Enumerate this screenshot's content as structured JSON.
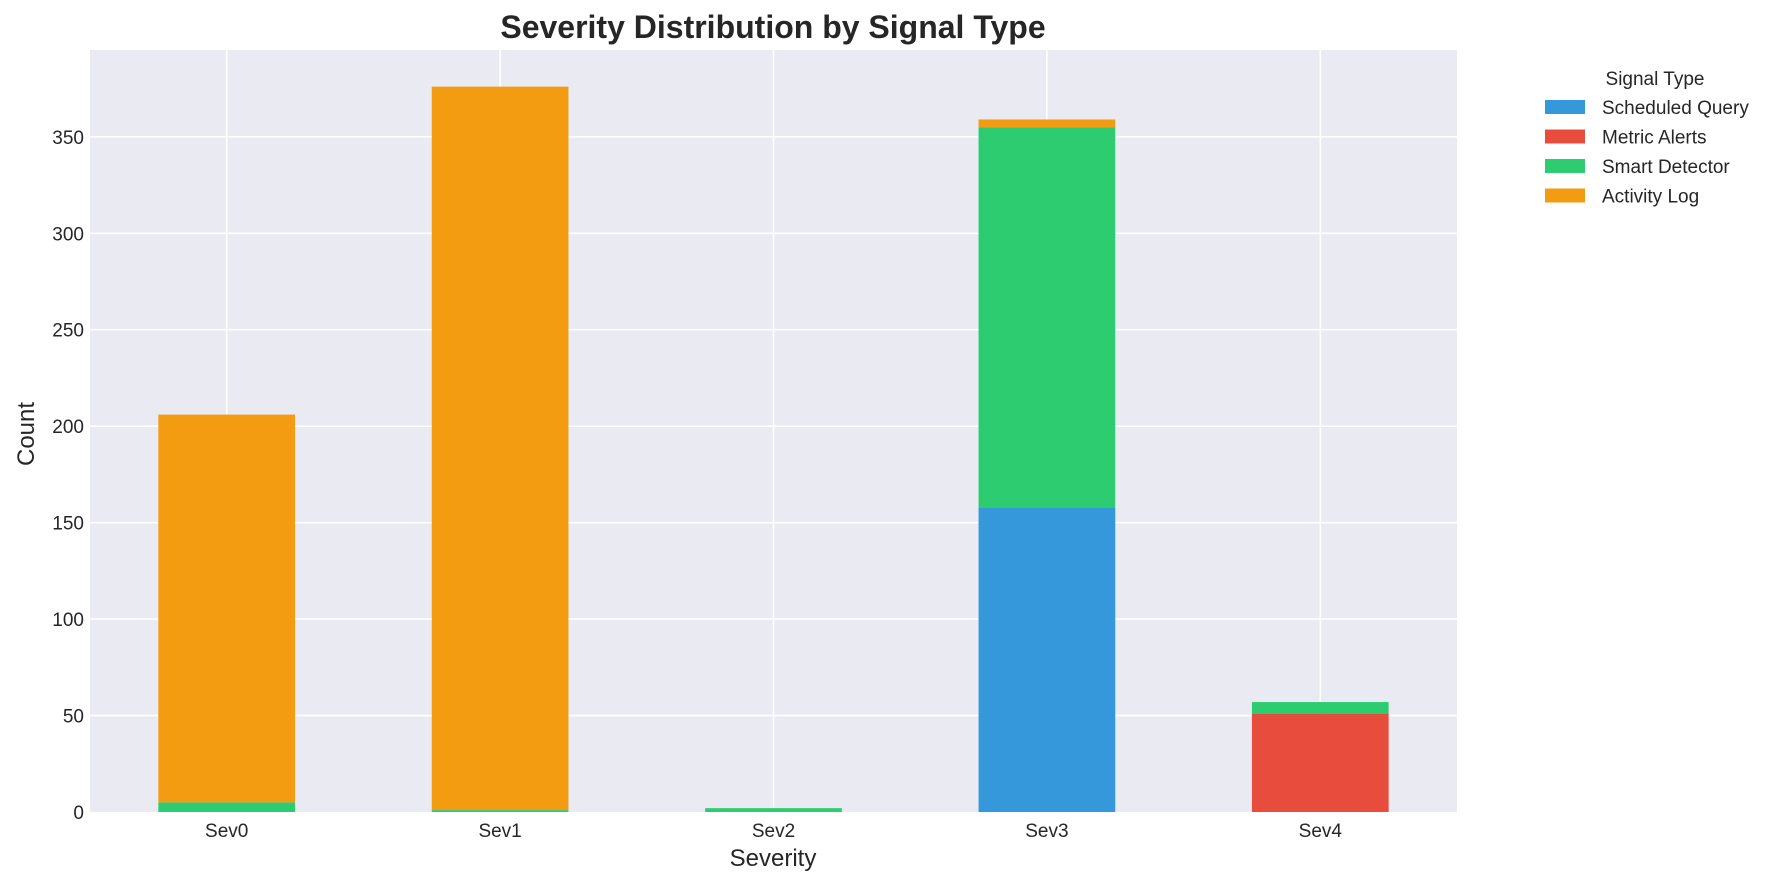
{
  "chart_data": {
    "type": "bar",
    "stacked": true,
    "title": "Severity Distribution by Signal Type",
    "xlabel": "Severity",
    "ylabel": "Count",
    "categories": [
      "Sev0",
      "Sev1",
      "Sev2",
      "Sev3",
      "Sev4"
    ],
    "ylim": [
      0,
      395
    ],
    "yticks": [
      0,
      50,
      100,
      150,
      200,
      250,
      300,
      350
    ],
    "grid": true,
    "legend": {
      "title": "Signal Type",
      "placement": "outside-top-right"
    },
    "series": [
      {
        "name": "Scheduled Query",
        "color": "#3498db",
        "values": [
          0,
          0,
          0,
          158,
          0
        ]
      },
      {
        "name": "Metric Alerts",
        "color": "#e74c3c",
        "values": [
          0,
          0,
          0,
          0,
          51
        ]
      },
      {
        "name": "Smart Detector",
        "color": "#2ecc71",
        "values": [
          5,
          1,
          2,
          197,
          6
        ]
      },
      {
        "name": "Activity Log",
        "color": "#f39c12",
        "values": [
          201,
          375,
          0,
          4,
          0
        ]
      }
    ]
  }
}
